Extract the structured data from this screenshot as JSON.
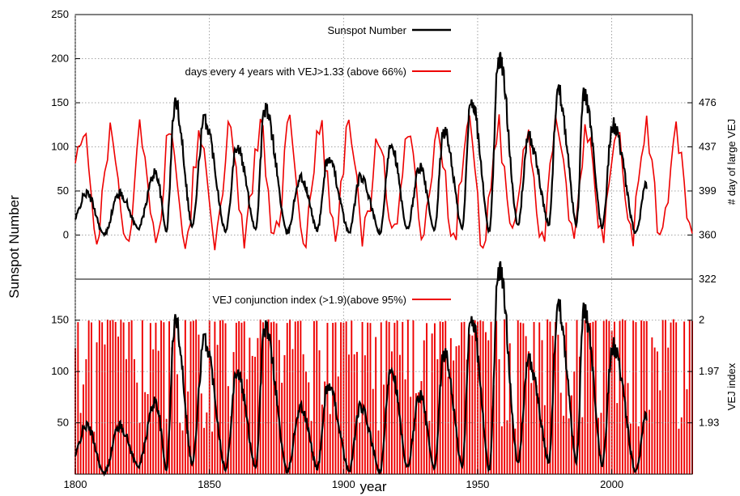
{
  "chart_data": [
    {
      "type": "line",
      "panel": "top",
      "xlabel": "year",
      "ylabel": "Sunspot Number",
      "y2label": "# day of large VEJ",
      "xlim": [
        1800,
        2030
      ],
      "ylim": [
        -50,
        250
      ],
      "x_ticks": [
        "1800",
        "1850",
        "1900",
        "1950",
        "2000"
      ],
      "y_ticks": [
        "0",
        "50",
        "100",
        "150",
        "200",
        "250"
      ],
      "y2_ticks": [
        "322",
        "360",
        "399",
        "437",
        "476"
      ],
      "grid": true,
      "legend_position": "top-right",
      "cycle_minima_years": [
        1798.3,
        1810.6,
        1823.3,
        1833.9,
        1843.5,
        1856.0,
        1867.2,
        1878.9,
        1890.2,
        1902.0,
        1913.6,
        1923.6,
        1933.8,
        1944.2,
        1954.3,
        1964.9,
        1976.5,
        1986.8,
        1996.4,
        2008.9
      ],
      "cycle_maxima_years": [
        1804.2,
        1816.4,
        1829.9,
        1837.2,
        1848.1,
        1860.1,
        1870.6,
        1883.9,
        1894.1,
        1906.2,
        1917.6,
        1928.4,
        1937.4,
        1947.5,
        1957.9,
        1968.9,
        1979.9,
        1989.6,
        2000.3,
        2013.0
      ],
      "cycle_maxima_values": [
        47,
        47,
        71,
        150,
        130,
        100,
        142,
        65,
        86,
        65,
        105,
        77,
        118,
        155,
        202,
        110,
        165,
        160,
        125,
        57
      ],
      "series": [
        {
          "name": "Sunspot Number",
          "color": "#000000",
          "x_range": [
            1800,
            2013
          ]
        },
        {
          "name": "days every 4 years with VEJ>1.33 (above 66%)",
          "color": "#ee0000",
          "x_range": [
            1800,
            2030
          ],
          "period_years": 11.07,
          "mean_value": 60,
          "amplitude": 60,
          "min_value": -42,
          "max_value": 148
        }
      ]
    },
    {
      "type": "bar",
      "panel": "bottom",
      "xlabel": "year",
      "ylabel": "Sunspot Number",
      "y2label": "VEJ index",
      "xlim": [
        1800,
        2030
      ],
      "ylim": [
        0,
        190
      ],
      "x_ticks": [
        "1800",
        "1850",
        "1900",
        "1950",
        "2000"
      ],
      "y_ticks": [
        "50",
        "100",
        "150"
      ],
      "y2_ticks": [
        "1.93",
        "1.97",
        "2"
      ],
      "grid": true,
      "legend_position": "top-right",
      "series": [
        {
          "name": "VEJ conjunction index (>1.9)(above 95%)",
          "color": "#ee0000",
          "chart": "bar",
          "x_range": [
            1800,
            2030
          ],
          "bar_values_range": [
            40,
            155
          ]
        },
        {
          "name": "Sunspot Number",
          "color": "#000000",
          "chart": "line",
          "x_range": [
            1800,
            2013
          ]
        }
      ]
    }
  ]
}
